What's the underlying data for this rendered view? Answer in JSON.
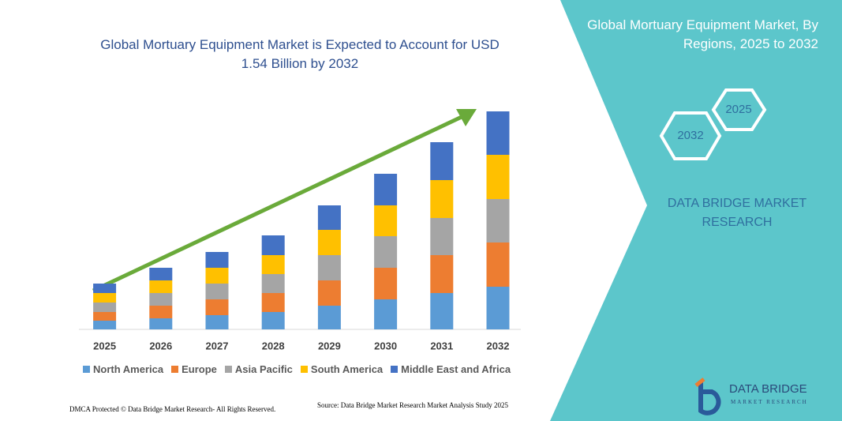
{
  "chart_data": {
    "type": "stacked-bar",
    "title": "Global Mortuary Equipment Market is Expected to Account for USD 1.54 Billion by 2032",
    "categories": [
      "2025",
      "2026",
      "2027",
      "2028",
      "2029",
      "2030",
      "2031",
      "2032"
    ],
    "series": [
      {
        "name": "North America",
        "color": "#5b9bd5",
        "values": [
          11,
          14,
          18,
          22,
          30,
          38,
          46,
          54
        ]
      },
      {
        "name": "Europe",
        "color": "#ed7d31",
        "values": [
          11,
          16,
          20,
          24,
          32,
          40,
          48,
          56
        ]
      },
      {
        "name": "Asia Pacific",
        "color": "#a5a5a5",
        "values": [
          12,
          16,
          20,
          24,
          32,
          40,
          47,
          55
        ]
      },
      {
        "name": "South America",
        "color": "#ffc000",
        "values": [
          12,
          16,
          20,
          24,
          32,
          39,
          48,
          56
        ]
      },
      {
        "name": "Middle East and Africa",
        "color": "#4472c4",
        "values": [
          12,
          16,
          20,
          25,
          31,
          40,
          48,
          55
        ]
      }
    ]
  },
  "panel": {
    "title": "Global Mortuary Equipment Market, By Regions, 2025 to 2032",
    "hex_start": "2025",
    "hex_end": "2032",
    "brand": "DATA BRIDGE MARKET RESEARCH"
  },
  "footer": {
    "dmca": "DMCA Protected © Data Bridge Market Research- All Rights Reserved.",
    "source": "Source: Data Bridge Market Research Market Analysis Study 2025"
  },
  "logo": {
    "name": "DATA BRIDGE",
    "tagline": "MARKET RESEARCH"
  }
}
